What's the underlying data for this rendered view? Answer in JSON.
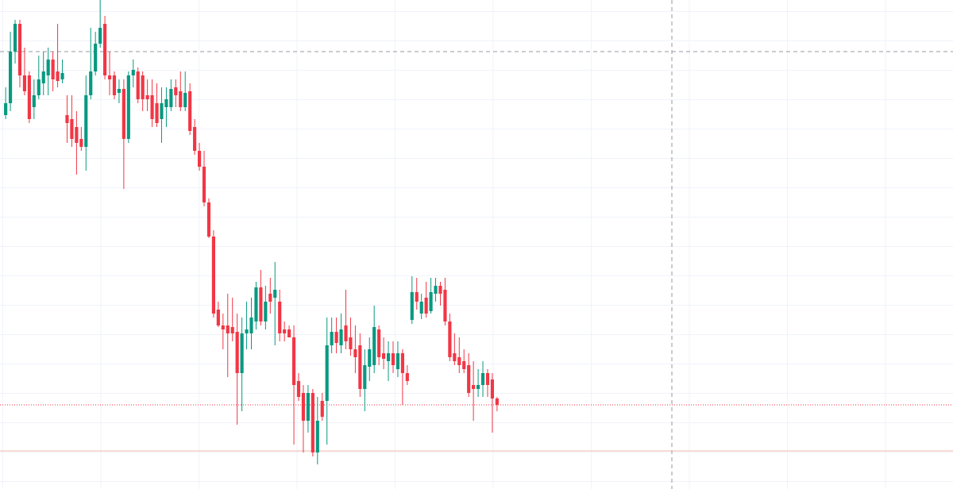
{
  "chart_data": {
    "type": "candlestick",
    "up_color": "#089981",
    "down_color": "#f23645",
    "xlim": [
      -1.2,
      200.5
    ],
    "ylim": [
      0,
      616
    ],
    "open": [
      471,
      486,
      551,
      586,
      521,
      521,
      481,
      496,
      511,
      521,
      541,
      526,
      516,
      471,
      466,
      456,
      441,
      431,
      496,
      526,
      561,
      586,
      521,
      521,
      499,
      504,
      441,
      521,
      526,
      521,
      496,
      496,
      486,
      466,
      481,
      481,
      506,
      501,
      481,
      501,
      456,
      426,
      406,
      361,
      318,
      226,
      206,
      206,
      204,
      198,
      146,
      196,
      196,
      211,
      254,
      211,
      246,
      241,
      236,
      201,
      201,
      191,
      136,
      121,
      86,
      121,
      46,
      111,
      111,
      181,
      198,
      181,
      206,
      191,
      176,
      181,
      126,
      154,
      156,
      201,
      171,
      161,
      171,
      151,
      171,
      146,
      213,
      248,
      221,
      241,
      224,
      246,
      256,
      251,
      211,
      171,
      166,
      161,
      156,
      131,
      126,
      131,
      146,
      138,
      114
    ],
    "high": [
      506,
      576,
      591,
      591,
      556,
      526,
      516,
      546,
      551,
      556,
      551,
      586,
      541,
      496,
      496,
      476,
      456,
      521,
      581,
      576,
      616,
      596,
      551,
      526,
      516,
      516,
      526,
      541,
      531,
      526,
      516,
      516,
      511,
      506,
      506,
      516,
      516,
      526,
      526,
      511,
      466,
      436,
      426,
      366,
      326,
      236,
      221,
      246,
      241,
      221,
      216,
      236,
      241,
      261,
      276,
      256,
      266,
      286,
      251,
      211,
      206,
      206,
      146,
      131,
      131,
      126,
      116,
      121,
      216,
      216,
      216,
      221,
      251,
      216,
      206,
      196,
      176,
      191,
      231,
      206,
      191,
      186,
      186,
      186,
      176,
      156,
      268,
      266,
      246,
      261,
      266,
      266,
      261,
      266,
      221,
      196,
      191,
      176,
      171,
      161,
      151,
      161,
      151,
      146,
      116
    ],
    "low": [
      466,
      476,
      536,
      506,
      496,
      461,
      466,
      491,
      496,
      496,
      501,
      506,
      511,
      436,
      431,
      396,
      426,
      401,
      491,
      521,
      556,
      516,
      496,
      491,
      486,
      378,
      436,
      506,
      486,
      476,
      476,
      456,
      456,
      436,
      456,
      476,
      481,
      476,
      476,
      446,
      421,
      401,
      356,
      316,
      216,
      204,
      176,
      141,
      186,
      81,
      98,
      176,
      176,
      201,
      206,
      201,
      221,
      181,
      186,
      186,
      191,
      56,
      111,
      46,
      71,
      41,
      31,
      86,
      56,
      171,
      171,
      171,
      176,
      168,
      146,
      116,
      98,
      136,
      146,
      156,
      151,
      136,
      146,
      141,
      106,
      131,
      208,
      226,
      214,
      216,
      221,
      236,
      231,
      206,
      161,
      156,
      146,
      146,
      116,
      86,
      116,
      116,
      116,
      71,
      98
    ],
    "close": [
      486,
      551,
      586,
      521,
      501,
      466,
      496,
      516,
      526,
      541,
      516,
      514,
      524,
      461,
      441,
      436,
      431,
      496,
      526,
      561,
      581,
      521,
      516,
      496,
      504,
      441,
      521,
      528,
      491,
      491,
      491,
      466,
      461,
      486,
      491,
      504,
      496,
      481,
      499,
      451,
      426,
      406,
      361,
      318,
      221,
      206,
      201,
      196,
      196,
      146,
      196,
      201,
      216,
      254,
      211,
      236,
      236,
      251,
      196,
      196,
      191,
      131,
      116,
      86,
      121,
      46,
      86,
      91,
      181,
      198,
      184,
      201,
      186,
      176,
      166,
      126,
      156,
      176,
      204,
      166,
      164,
      171,
      156,
      171,
      146,
      136,
      248,
      236,
      236,
      221,
      248,
      256,
      246,
      211,
      166,
      161,
      156,
      151,
      121,
      126,
      131,
      146,
      131,
      114,
      106
    ],
    "last_price": 106,
    "low_line": 48,
    "crosshair": {
      "x": 141,
      "y": 551
    }
  }
}
